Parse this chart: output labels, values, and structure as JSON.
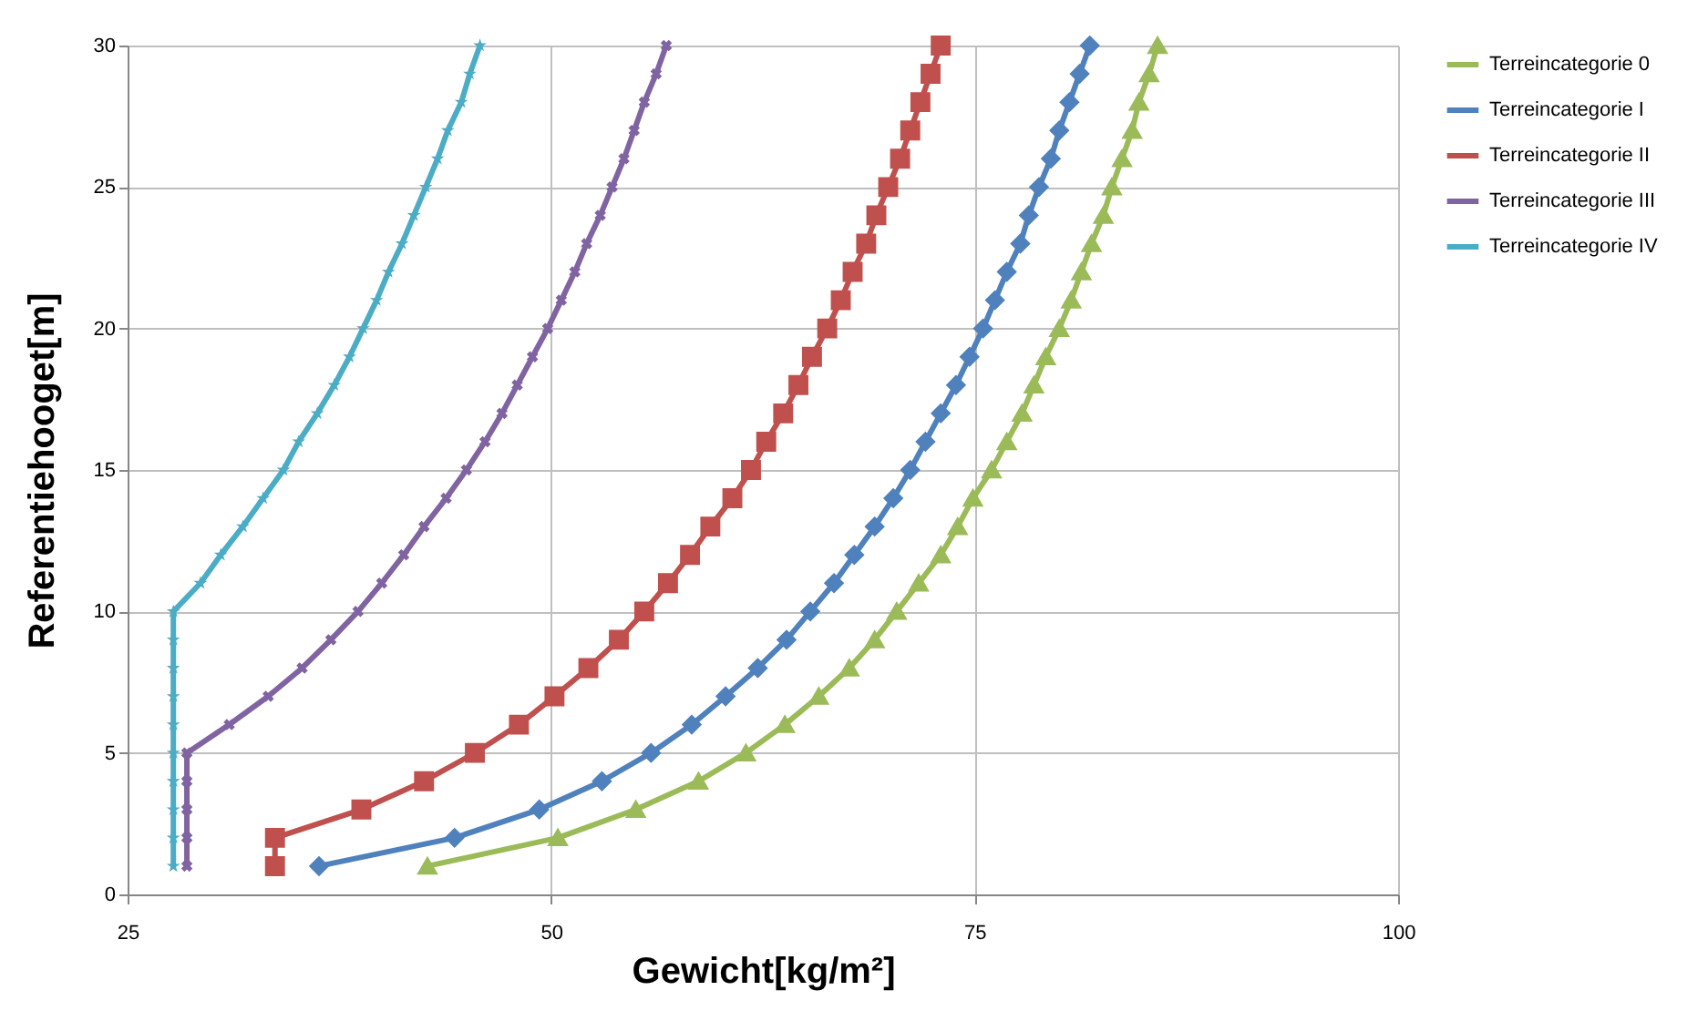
{
  "chart_data": {
    "type": "line",
    "xlabel": "Gewicht[kg/m²]",
    "ylabel": "Referentiehooget[m]",
    "grid": true,
    "legend": "right",
    "xlim": [
      25,
      100
    ],
    "ylim": [
      0,
      30
    ],
    "xticks": [
      25,
      50,
      75,
      100
    ],
    "yticks": [
      0,
      5,
      10,
      15,
      20,
      25,
      30
    ],
    "series": [
      {
        "name": "Terreincategorie 0",
        "color": "#9bbb59",
        "marker": "triangle",
        "x": [
          42.7,
          50.4,
          55.0,
          58.7,
          61.5,
          63.8,
          65.8,
          67.6,
          69.1,
          70.4,
          71.7,
          73.0,
          74.0,
          74.9,
          76.0,
          76.9,
          77.8,
          78.5,
          79.2,
          80.0,
          80.7,
          81.3,
          81.9,
          82.6,
          83.1,
          83.7,
          84.3,
          84.7,
          85.3,
          85.8
        ],
        "values": [
          1,
          2,
          3,
          4,
          5,
          6,
          7,
          8,
          9,
          10,
          11,
          12,
          13,
          14,
          15,
          16,
          17,
          18,
          19,
          20,
          21,
          22,
          23,
          24,
          25,
          26,
          27,
          28,
          29,
          30
        ]
      },
      {
        "name": "Terreincategorie I",
        "color": "#4f81bd",
        "marker": "diamond",
        "x": [
          36.3,
          44.3,
          49.3,
          53.0,
          55.9,
          58.3,
          60.3,
          62.2,
          63.9,
          65.3,
          66.7,
          67.9,
          69.1,
          70.2,
          71.2,
          72.1,
          73.0,
          73.9,
          74.7,
          75.5,
          76.2,
          76.9,
          77.7,
          78.2,
          78.8,
          79.5,
          80.0,
          80.6,
          81.2,
          81.8
        ],
        "values": [
          1,
          2,
          3,
          4,
          5,
          6,
          7,
          8,
          9,
          10,
          11,
          12,
          13,
          14,
          15,
          16,
          17,
          18,
          19,
          20,
          21,
          22,
          23,
          24,
          25,
          26,
          27,
          28,
          29,
          30
        ]
      },
      {
        "name": "Terreincategorie II",
        "color": "#c0504d",
        "marker": "square",
        "x": [
          33.7,
          33.7,
          38.8,
          42.5,
          45.5,
          48.1,
          50.2,
          52.2,
          54.0,
          55.5,
          56.9,
          58.2,
          59.4,
          60.7,
          61.8,
          62.7,
          63.7,
          64.6,
          65.4,
          66.3,
          67.1,
          67.8,
          68.6,
          69.2,
          69.9,
          70.6,
          71.2,
          71.8,
          72.4,
          73.0
        ],
        "values": [
          1,
          2,
          3,
          4,
          5,
          6,
          7,
          8,
          9,
          10,
          11,
          12,
          13,
          14,
          15,
          16,
          17,
          18,
          19,
          20,
          21,
          22,
          23,
          24,
          25,
          26,
          27,
          28,
          29,
          30
        ]
      },
      {
        "name": "Terreincategorie III",
        "color": "#8064a2",
        "marker": "cross",
        "x": [
          28.5,
          28.5,
          28.5,
          28.5,
          28.5,
          31.0,
          33.3,
          35.3,
          37.0,
          38.6,
          40.0,
          41.3,
          42.5,
          43.8,
          45.0,
          46.1,
          47.1,
          48.0,
          48.9,
          49.8,
          50.6,
          51.4,
          52.1,
          52.9,
          53.6,
          54.3,
          54.9,
          55.5,
          56.2,
          56.8
        ],
        "values": [
          1,
          2,
          3,
          4,
          5,
          6,
          7,
          8,
          9,
          10,
          11,
          12,
          13,
          14,
          15,
          16,
          17,
          18,
          19,
          20,
          21,
          22,
          23,
          24,
          25,
          26,
          27,
          28,
          29,
          30
        ]
      },
      {
        "name": "Terreincategorie IV",
        "color": "#4bacc6",
        "marker": "star",
        "x": [
          27.7,
          27.7,
          27.7,
          27.7,
          27.7,
          27.7,
          27.7,
          27.7,
          27.7,
          27.7,
          29.3,
          30.5,
          31.8,
          33.0,
          34.2,
          35.1,
          36.2,
          37.2,
          38.1,
          38.9,
          39.7,
          40.4,
          41.2,
          41.9,
          42.6,
          43.3,
          43.9,
          44.7,
          45.2,
          45.8
        ],
        "values": [
          1,
          2,
          3,
          4,
          5,
          6,
          7,
          8,
          9,
          10,
          11,
          12,
          13,
          14,
          15,
          16,
          17,
          18,
          19,
          20,
          21,
          22,
          23,
          24,
          25,
          26,
          27,
          28,
          29,
          30
        ]
      }
    ]
  }
}
